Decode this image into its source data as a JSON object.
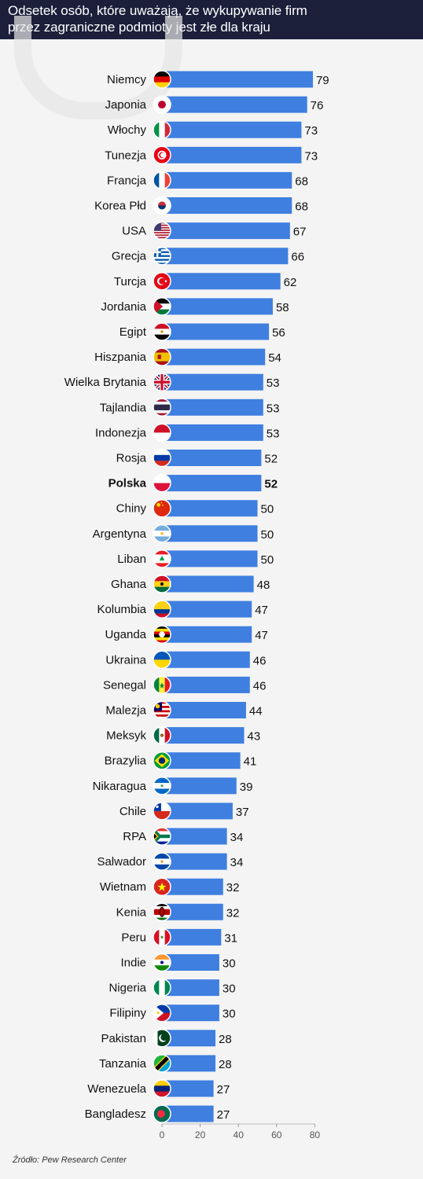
{
  "header": {
    "title_line1": "Odsetek osób, które uważają, że wykupywanie firm",
    "title_line2": "przez zagraniczne podmioty jest złe dla kraju"
  },
  "source": "Źródło: Pew Research Center",
  "colors": {
    "header_bg": "#1b1f3a",
    "bar": "#3f7fe0",
    "highlight": "Polska"
  },
  "chart_data": {
    "type": "bar",
    "orientation": "horizontal",
    "categories": [
      "Niemcy",
      "Japonia",
      "Włochy",
      "Tunezja",
      "Francja",
      "Korea Płd",
      "USA",
      "Grecja",
      "Turcja",
      "Jordania",
      "Egipt",
      "Hiszpania",
      "Wielka Brytania",
      "Tajlandia",
      "Indonezja",
      "Rosja",
      "Polska",
      "Chiny",
      "Argentyna",
      "Liban",
      "Ghana",
      "Kolumbia",
      "Uganda",
      "Ukraina",
      "Senegal",
      "Malezja",
      "Meksyk",
      "Brazylia",
      "Nikaragua",
      "Chile",
      "RPA",
      "Salwador",
      "Wietnam",
      "Kenia",
      "Peru",
      "Indie",
      "Nigeria",
      "Filipiny",
      "Pakistan",
      "Tanzania",
      "Wenezuela",
      "Bangladesz"
    ],
    "values": [
      79,
      76,
      73,
      73,
      68,
      68,
      67,
      66,
      62,
      58,
      56,
      54,
      53,
      53,
      53,
      52,
      52,
      50,
      50,
      50,
      48,
      47,
      47,
      46,
      46,
      44,
      43,
      41,
      39,
      37,
      34,
      34,
      32,
      32,
      31,
      30,
      30,
      30,
      28,
      28,
      27,
      27
    ],
    "flags": [
      "germany-flag-icon",
      "japan-flag-icon",
      "italy-flag-icon",
      "tunisia-flag-icon",
      "france-flag-icon",
      "south-korea-flag-icon",
      "usa-flag-icon",
      "greece-flag-icon",
      "turkey-flag-icon",
      "jordan-flag-icon",
      "egypt-flag-icon",
      "spain-flag-icon",
      "uk-flag-icon",
      "thailand-flag-icon",
      "indonesia-flag-icon",
      "russia-flag-icon",
      "poland-flag-icon",
      "china-flag-icon",
      "argentina-flag-icon",
      "lebanon-flag-icon",
      "ghana-flag-icon",
      "colombia-flag-icon",
      "uganda-flag-icon",
      "ukraine-flag-icon",
      "senegal-flag-icon",
      "malaysia-flag-icon",
      "mexico-flag-icon",
      "brazil-flag-icon",
      "nicaragua-flag-icon",
      "chile-flag-icon",
      "south-africa-flag-icon",
      "el-salvador-flag-icon",
      "vietnam-flag-icon",
      "kenya-flag-icon",
      "peru-flag-icon",
      "india-flag-icon",
      "nigeria-flag-icon",
      "philippines-flag-icon",
      "pakistan-flag-icon",
      "tanzania-flag-icon",
      "venezuela-flag-icon",
      "bangladesh-flag-icon"
    ],
    "x_ticks": [
      0,
      20,
      40,
      60,
      80
    ],
    "xlim": [
      0,
      80
    ],
    "title": "Odsetek osób, które uważają, że wykupywanie firm przez zagraniczne podmioty jest złe dla kraju",
    "xlabel": "",
    "ylabel": "",
    "grid": false,
    "legend": "none"
  }
}
